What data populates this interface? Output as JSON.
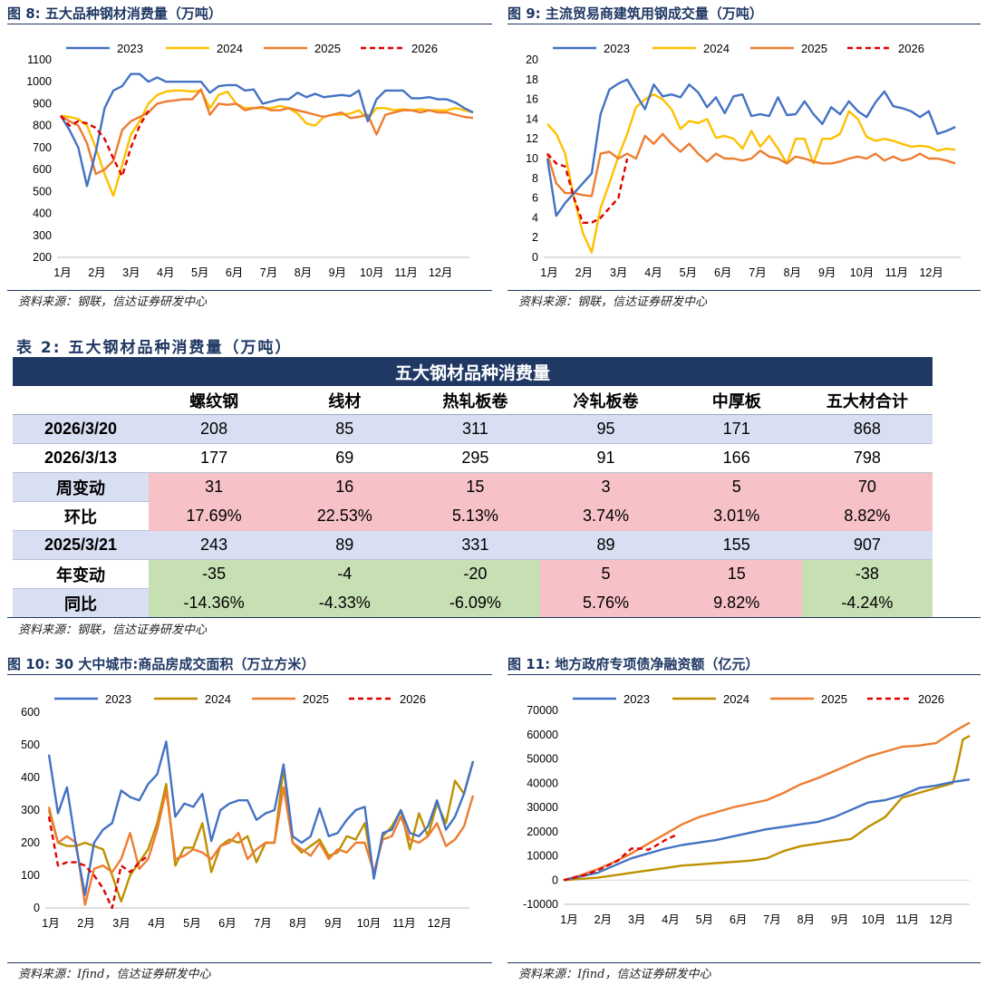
{
  "fig8": {
    "title": "图 8:  五大品种钢材消费量（万吨）",
    "source": "资料来源：钢联，信达证券研发中心"
  },
  "fig9": {
    "title": "图 9:  主流贸易商建筑用钢成交量（万吨）",
    "source": "资料来源：钢联，信达证券研发中心"
  },
  "table": {
    "caption": "表 2:  五大钢材品种消费量（万吨）",
    "header": "五大钢材品种消费量",
    "columns": [
      "螺纹钢",
      "线材",
      "热轧板卷",
      "冷轧板卷",
      "中厚板",
      "五大材合计"
    ],
    "rows": [
      {
        "label": "2026/3/20",
        "values": [
          "208",
          "85",
          "311",
          "95",
          "171",
          "868"
        ]
      },
      {
        "label": "2026/3/13",
        "values": [
          "177",
          "69",
          "295",
          "91",
          "166",
          "798"
        ]
      },
      {
        "label": "周变动",
        "values": [
          "31",
          "16",
          "15",
          "3",
          "5",
          "70"
        ]
      },
      {
        "label": "环比",
        "values": [
          "17.69%",
          "22.53%",
          "5.13%",
          "3.74%",
          "3.01%",
          "8.82%"
        ]
      },
      {
        "label": "2025/3/21",
        "values": [
          "243",
          "89",
          "331",
          "89",
          "155",
          "907"
        ]
      },
      {
        "label": "年变动",
        "values": [
          "-35",
          "-4",
          "-20",
          "5",
          "15",
          "-38"
        ]
      },
      {
        "label": "同比",
        "values": [
          "-14.36%",
          "-4.33%",
          "-6.09%",
          "5.76%",
          "9.82%",
          "-4.24%"
        ]
      }
    ],
    "source": "资料来源：钢联，信达证券研发中心"
  },
  "fig10": {
    "title": "图 10:  30 大中城市:商品房成交面积（万立方米）",
    "source": "资料来源：Ifind，信达证券研发中心"
  },
  "fig11": {
    "title": "图 11:  地方政府专项债净融资额（亿元）",
    "source": "资料来源：Ifind，信达证券研发中心"
  },
  "colors": {
    "s2023": "#4472c4",
    "s2024_fig8": "#ffc000",
    "s2024_fig10": "#bf9000",
    "s2025": "#ed7d31",
    "s2026": "#e00000"
  },
  "chart_data": [
    {
      "id": "fig8",
      "type": "line",
      "ylim": [
        200,
        1100
      ],
      "yticks": [
        200,
        300,
        400,
        500,
        600,
        700,
        800,
        900,
        1000,
        1100
      ],
      "months": [
        "1月",
        "2月",
        "3月",
        "4月",
        "5月",
        "6月",
        "7月",
        "8月",
        "9月",
        "10月",
        "11月",
        "12月"
      ],
      "series": [
        {
          "name": "2023",
          "values": [
            845,
            780,
            700,
            525,
            680,
            880,
            960,
            980,
            1035,
            1035,
            1000,
            1020,
            1000,
            1000,
            1000,
            1000,
            1000,
            950,
            980,
            985,
            985,
            960,
            965,
            900,
            910,
            920,
            920,
            950,
            930,
            945,
            930,
            935,
            940,
            935,
            960,
            820,
            920,
            960,
            960,
            960,
            925,
            925,
            930,
            920,
            920,
            905,
            880,
            860
          ]
        },
        {
          "name": "2024",
          "values": [
            845,
            840,
            830,
            800,
            700,
            580,
            480,
            620,
            760,
            820,
            900,
            940,
            955,
            960,
            960,
            955,
            960,
            880,
            940,
            955,
            900,
            880,
            880,
            880,
            880,
            890,
            880,
            855,
            810,
            800,
            840,
            850,
            850,
            855,
            870,
            830,
            880,
            880,
            870,
            875,
            870,
            875,
            870,
            870,
            870,
            880,
            870,
            860
          ]
        },
        {
          "name": "2025",
          "values": [
            845,
            820,
            800,
            720,
            580,
            600,
            640,
            780,
            820,
            840,
            860,
            900,
            910,
            915,
            920,
            920,
            965,
            850,
            900,
            895,
            900,
            870,
            880,
            885,
            870,
            870,
            880,
            870,
            860,
            850,
            840,
            850,
            860,
            835,
            840,
            850,
            760,
            850,
            860,
            870,
            870,
            860,
            870,
            860,
            860,
            850,
            840,
            835
          ]
        },
        {
          "name": "2026",
          "values": [
            845,
            800,
            820,
            810,
            790,
            740,
            650,
            570,
            700,
            800,
            868
          ]
        }
      ]
    },
    {
      "id": "fig9",
      "type": "line",
      "ylim": [
        0,
        20
      ],
      "yticks": [
        0,
        2,
        4,
        6,
        8,
        10,
        12,
        14,
        16,
        18,
        20
      ],
      "months": [
        "1月",
        "2月",
        "3月",
        "4月",
        "5月",
        "6月",
        "7月",
        "8月",
        "9月",
        "10月",
        "11月",
        "12月"
      ],
      "series": [
        {
          "name": "2023",
          "values": [
            10,
            4.2,
            5.5,
            6.5,
            7.5,
            8.5,
            14.5,
            17,
            17.6,
            18,
            16.5,
            15,
            17.5,
            16.3,
            16.5,
            16.2,
            17.5,
            16.7,
            15.2,
            16.2,
            14.6,
            16.3,
            16.5,
            14.3,
            14.5,
            14.3,
            16.2,
            14.4,
            14.5,
            15.8,
            14.5,
            13.5,
            15.2,
            14.5,
            15.8,
            14.8,
            14.2,
            15.7,
            16.8,
            15.3,
            15.1,
            14.8,
            14.2,
            14.8,
            12.5,
            12.8,
            13.2
          ]
        },
        {
          "name": "2024",
          "values": [
            13.5,
            12.5,
            10.5,
            6,
            2.5,
            0.5,
            5,
            7.5,
            10.2,
            12.5,
            15.2,
            16,
            16.5,
            16,
            15,
            13,
            13.8,
            13.6,
            14,
            12.1,
            12.3,
            12,
            11,
            12.8,
            11.2,
            12.3,
            11,
            9.5,
            12,
            12,
            9.5,
            12,
            12,
            12.5,
            14.8,
            14,
            12.2,
            11.8,
            12,
            11.8,
            11.5,
            11.2,
            11.3,
            11.2,
            10.8,
            11,
            10.9
          ]
        },
        {
          "name": "2025",
          "values": [
            10.5,
            7.5,
            6.5,
            6.5,
            6.3,
            6.2,
            10.5,
            10.7,
            10,
            10.5,
            10,
            12.3,
            11.5,
            12.5,
            11.5,
            10.7,
            11.5,
            10.5,
            9.7,
            10.5,
            10,
            10,
            9.8,
            10,
            10.8,
            10.2,
            10,
            9.5,
            10.2,
            10,
            9.7,
            9.5,
            9.5,
            9.7,
            10,
            10.2,
            10,
            10.5,
            9.8,
            10.2,
            9.8,
            10,
            10.5,
            10,
            10,
            9.8,
            9.5
          ]
        },
        {
          "name": "2026",
          "values": [
            10.5,
            9.5,
            9.2,
            6,
            3.5,
            3.5,
            4,
            5,
            6,
            10
          ]
        }
      ]
    },
    {
      "id": "fig10",
      "type": "line",
      "ylim": [
        0,
        600
      ],
      "yticks": [
        0,
        100,
        200,
        300,
        400,
        500,
        600
      ],
      "months": [
        "1月",
        "2月",
        "3月",
        "4月",
        "5月",
        "6月",
        "7月",
        "8月",
        "9月",
        "10月",
        "11月",
        "12月"
      ],
      "series": [
        {
          "name": "2023",
          "values": [
            470,
            290,
            370,
            190,
            40,
            200,
            240,
            260,
            360,
            340,
            330,
            380,
            410,
            510,
            280,
            320,
            310,
            350,
            205,
            300,
            320,
            330,
            330,
            270,
            290,
            300,
            440,
            220,
            200,
            220,
            305,
            220,
            230,
            270,
            300,
            310,
            90,
            230,
            240,
            300,
            230,
            220,
            250,
            330,
            240,
            280,
            350,
            450
          ]
        },
        {
          "name": "2024",
          "values": [
            300,
            200,
            190,
            190,
            200,
            190,
            180,
            100,
            20,
            100,
            140,
            180,
            260,
            380,
            130,
            185,
            185,
            260,
            110,
            190,
            210,
            200,
            220,
            140,
            200,
            200,
            430,
            200,
            170,
            190,
            210,
            160,
            170,
            220,
            210,
            260,
            100,
            220,
            250,
            300,
            180,
            290,
            220,
            320,
            260,
            390,
            350,
            450
          ]
        },
        {
          "name": "2025",
          "values": [
            310,
            200,
            220,
            200,
            10,
            120,
            130,
            110,
            150,
            230,
            120,
            150,
            240,
            360,
            150,
            160,
            180,
            170,
            150,
            190,
            200,
            230,
            150,
            180,
            200,
            200,
            370,
            200,
            180,
            160,
            200,
            150,
            180,
            170,
            200,
            200,
            110,
            210,
            220,
            280,
            210,
            200,
            220,
            260,
            190,
            210,
            250,
            345
          ]
        },
        {
          "name": "2026",
          "values": [
            280,
            130,
            140,
            140,
            130,
            100,
            60,
            0,
            130,
            110,
            140,
            160
          ]
        }
      ]
    },
    {
      "id": "fig11",
      "type": "line",
      "ylim": [
        -10000,
        70000
      ],
      "yticks": [
        -10000,
        0,
        10000,
        20000,
        30000,
        40000,
        50000,
        60000,
        70000
      ],
      "months": [
        "1月",
        "2月",
        "3月",
        "4月",
        "5月",
        "6月",
        "7月",
        "8月",
        "9月",
        "10月",
        "11月",
        "12月"
      ],
      "series": [
        {
          "name": "2023",
          "x": [
            0,
            0.5,
            1,
            1.5,
            2,
            2.5,
            3,
            3.5,
            4,
            4.5,
            5,
            5.5,
            6,
            6.5,
            7,
            7.5,
            8,
            8.5,
            9,
            9.5,
            10,
            10.5,
            11,
            11.5,
            12
          ],
          "values": [
            0,
            1500,
            3000,
            6000,
            9000,
            11000,
            13000,
            14500,
            15500,
            16500,
            18000,
            19500,
            21000,
            22000,
            23000,
            24000,
            26000,
            29000,
            32000,
            33000,
            35000,
            38000,
            39000,
            40500,
            41500
          ]
        },
        {
          "name": "2024",
          "x": [
            0,
            0.5,
            1,
            1.5,
            2,
            2.5,
            3,
            3.5,
            4,
            4.5,
            5,
            5.5,
            6,
            6.5,
            7,
            7.5,
            8,
            8.5,
            9,
            9.5,
            10,
            10.5,
            11,
            11.5,
            11.6,
            11.8,
            12
          ],
          "values": [
            0,
            500,
            1000,
            2000,
            3000,
            4000,
            5000,
            6000,
            6500,
            7000,
            7500,
            8000,
            9000,
            12000,
            14000,
            15000,
            16000,
            17000,
            22000,
            26000,
            34000,
            36000,
            38000,
            40000,
            45000,
            58000,
            59500
          ]
        },
        {
          "name": "2025",
          "x": [
            0,
            0.5,
            1,
            1.5,
            2,
            2.5,
            3,
            3.5,
            4,
            4.5,
            5,
            5.5,
            6,
            6.5,
            7,
            7.5,
            8,
            8.5,
            9,
            9.5,
            10,
            10.5,
            11,
            11.5,
            12
          ],
          "values": [
            0,
            2000,
            4500,
            7500,
            11000,
            15000,
            19000,
            23000,
            26000,
            28000,
            30000,
            31500,
            33000,
            36000,
            39500,
            42000,
            45000,
            48000,
            51000,
            53000,
            55000,
            55500,
            56500,
            61000,
            65000
          ]
        },
        {
          "name": "2026",
          "x": [
            0,
            0.3,
            0.6,
            1,
            1.3,
            1.6,
            2,
            2.3,
            2.5,
            2.7,
            3,
            3.3
          ],
          "values": [
            0,
            1000,
            2000,
            4000,
            6000,
            8000,
            13000,
            13000,
            12500,
            14000,
            16500,
            18500
          ]
        }
      ]
    }
  ]
}
